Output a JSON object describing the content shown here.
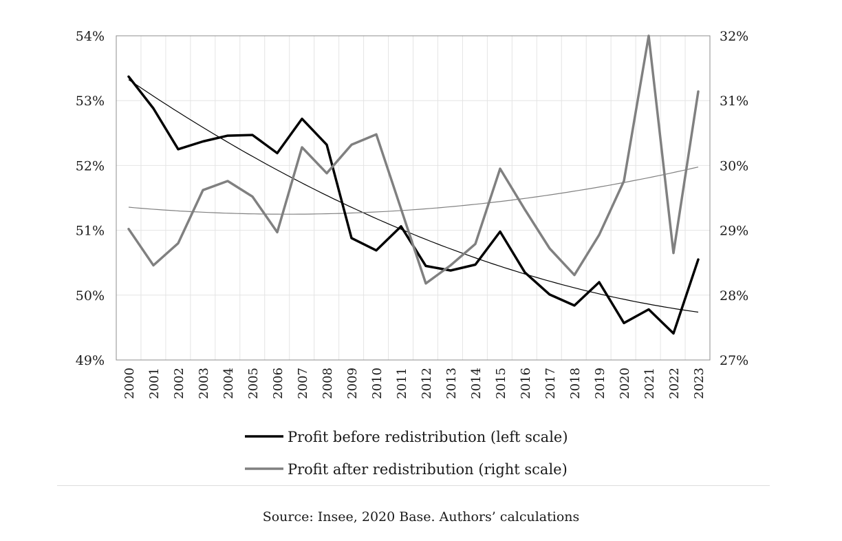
{
  "chart_data": {
    "type": "line",
    "x": [
      "2000",
      "2001",
      "2002",
      "2003",
      "2004",
      "2005",
      "2006",
      "2007",
      "2008",
      "2009",
      "2010",
      "2011",
      "2012",
      "2013",
      "2014",
      "2015",
      "2016",
      "2017",
      "2018",
      "2019",
      "2020",
      "2021",
      "2022",
      "2023"
    ],
    "series": [
      {
        "name": "Profit before redistribution (left scale)",
        "axis": "left",
        "color": "#000000",
        "values": [
          53.37,
          52.88,
          52.25,
          52.37,
          52.46,
          52.47,
          52.19,
          52.72,
          52.32,
          50.88,
          50.69,
          51.06,
          50.45,
          50.38,
          50.47,
          50.98,
          50.35,
          50.01,
          49.84,
          50.2,
          49.57,
          49.78,
          49.41,
          50.55
        ],
        "trend": "polynomial"
      },
      {
        "name": "Profit after redistribution (right scale)",
        "axis": "right",
        "color": "#808080",
        "values": [
          29.02,
          28.46,
          28.8,
          29.62,
          29.76,
          29.52,
          28.97,
          30.28,
          29.88,
          30.32,
          30.48,
          29.33,
          28.18,
          28.46,
          28.79,
          29.95,
          29.32,
          28.72,
          28.31,
          28.93,
          29.76,
          32.0,
          28.65,
          31.14
        ],
        "trend": "polynomial"
      }
    ],
    "left_axis": {
      "ylim": [
        49,
        54
      ],
      "ticks": [
        "49%",
        "50%",
        "51%",
        "52%",
        "53%",
        "54%"
      ]
    },
    "right_axis": {
      "ylim": [
        27,
        32
      ],
      "ticks": [
        "27%",
        "28%",
        "29%",
        "30%",
        "31%",
        "32%"
      ]
    },
    "grid": true,
    "legend_placement": "bottom"
  },
  "source": "Source:  Insee, 2020 Base.  Authors’ calculations"
}
